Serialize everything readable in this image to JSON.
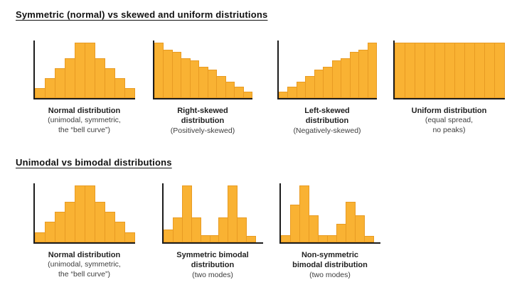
{
  "colors": {
    "background": "#FFFFFF",
    "bar-fill": "#F9B233",
    "bar-edge": "#E89B23",
    "axis": "#1C1C1C",
    "heading": "#111111",
    "caption-bold": "#222222",
    "caption": "#3D3D3D"
  },
  "sections": [
    {
      "heading": "Symmetric (normal) vs skewed and uniform distriutions"
    },
    {
      "heading": "Unimodal vs bimodal distributions"
    }
  ],
  "chart_data": [
    {
      "type": "bar",
      "section": 0,
      "title": "Normal distribution",
      "subtitle": "(unimodal, symmetric,\nthe “bell curve”)",
      "values": [
        1.8,
        3.6,
        5.4,
        7.2,
        10,
        10,
        7.2,
        5.4,
        3.6,
        1.8
      ],
      "ylim": [
        0,
        10
      ],
      "xlabel": "",
      "ylabel": "",
      "grid": false,
      "ticks": false
    },
    {
      "type": "bar",
      "section": 0,
      "title": "Right-skewed\ndistribution",
      "subtitle": "(Positively-skewed)",
      "values": [
        10,
        8.8,
        8.4,
        7.2,
        6.8,
        5.6,
        5.2,
        4.0,
        3.0,
        2.0,
        1.2
      ],
      "ylim": [
        0,
        10
      ],
      "xlabel": "",
      "ylabel": "",
      "grid": false,
      "ticks": false
    },
    {
      "type": "bar",
      "section": 0,
      "title": "Left-skewed\ndistribution",
      "subtitle": "(Negatively-skewed)",
      "values": [
        1.2,
        2.0,
        3.0,
        4.0,
        5.2,
        5.6,
        6.8,
        7.2,
        8.4,
        8.8,
        10
      ],
      "ylim": [
        0,
        10
      ],
      "xlabel": "",
      "ylabel": "",
      "grid": false,
      "ticks": false
    },
    {
      "type": "bar",
      "section": 0,
      "title": "Uniform distribution",
      "subtitle": "(equal spread,\nno peaks)",
      "values": [
        10,
        10,
        10,
        10,
        10,
        10,
        10,
        10,
        10,
        10,
        10
      ],
      "ylim": [
        0,
        10
      ],
      "xlabel": "",
      "ylabel": "",
      "grid": false,
      "ticks": false
    },
    {
      "type": "bar",
      "section": 1,
      "title": "Normal distribution",
      "subtitle": "(unimodal, symmetric,\nthe “bell curve”)",
      "values": [
        1.8,
        3.6,
        5.4,
        7.2,
        10,
        10,
        7.2,
        5.4,
        3.6,
        1.8
      ],
      "ylim": [
        0,
        10
      ],
      "xlabel": "",
      "ylabel": "",
      "grid": false,
      "ticks": false
    },
    {
      "type": "bar",
      "section": 1,
      "title": "Symmetric bimodal\ndistribution",
      "subtitle": "(two modes)",
      "values": [
        2.2,
        4.4,
        10,
        4.4,
        1.3,
        1.3,
        4.4,
        10,
        4.4,
        1.1
      ],
      "ylim": [
        0,
        10
      ],
      "gap_right": 7,
      "xlabel": "",
      "ylabel": "",
      "grid": false,
      "ticks": false
    },
    {
      "type": "bar",
      "section": 1,
      "title": "Non-symmetric\nbimodal distribution",
      "subtitle": "(two modes)",
      "values": [
        1.3,
        6.7,
        10,
        4.8,
        1.3,
        1.3,
        3.3,
        7.2,
        4.8,
        1.1
      ],
      "ylim": [
        0,
        10
      ],
      "gap_right": 6,
      "xlabel": "",
      "ylabel": "",
      "grid": false,
      "ticks": false
    }
  ]
}
